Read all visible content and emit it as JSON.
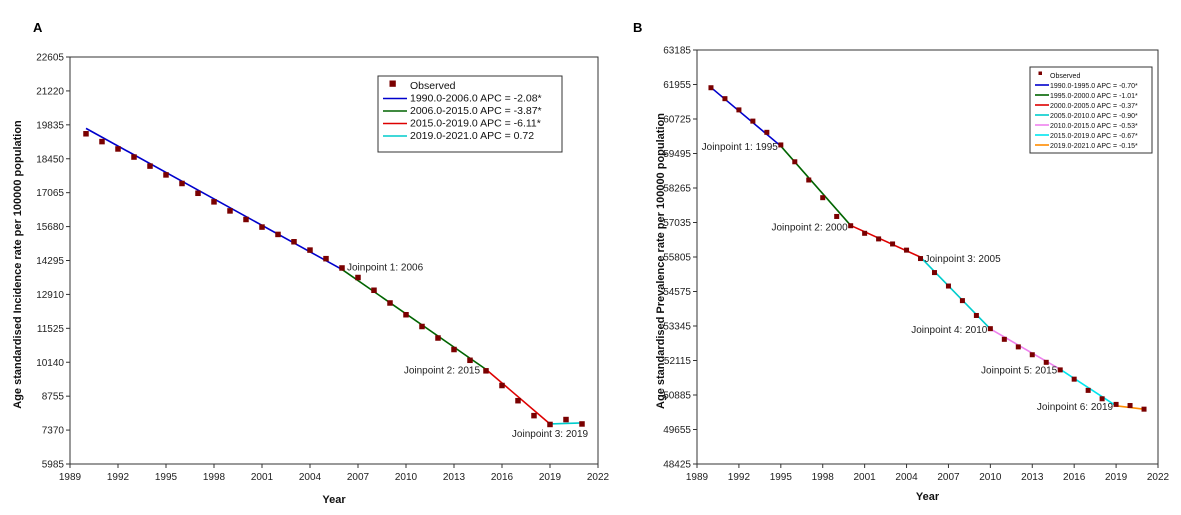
{
  "chart_data": [
    {
      "panel": "A",
      "type": "line",
      "xlabel": "Year",
      "ylabel": "Age standardised Incidence rate per 100000 population",
      "xlim": [
        1989,
        2022
      ],
      "ylim": [
        5985,
        22605
      ],
      "x_ticks": [
        "1989",
        "1992",
        "1995",
        "1998",
        "2001",
        "2004",
        "2007",
        "2010",
        "2013",
        "2016",
        "2019",
        "2022"
      ],
      "y_ticks": [
        "5985",
        "7370",
        "8755",
        "10140",
        "11525",
        "12910",
        "14295",
        "15680",
        "17065",
        "18450",
        "19835",
        "21220",
        "22605"
      ],
      "observed": {
        "name": "Observed",
        "color": "#7a0000",
        "x": [
          1990,
          1991,
          1992,
          1993,
          1994,
          1995,
          1996,
          1997,
          1998,
          1999,
          2000,
          2001,
          2002,
          2003,
          2004,
          2005,
          2006,
          2007,
          2008,
          2009,
          2010,
          2011,
          2012,
          2013,
          2014,
          2015,
          2016,
          2017,
          2018,
          2019,
          2020,
          2021
        ],
        "y": [
          19470,
          19150,
          18850,
          18520,
          18150,
          17790,
          17440,
          17040,
          16690,
          16320,
          15970,
          15660,
          15360,
          15060,
          14720,
          14370,
          13990,
          13600,
          13080,
          12560,
          12080,
          11600,
          11130,
          10660,
          10220,
          9790,
          9190,
          8570,
          7960,
          7600,
          7800,
          7620
        ]
      },
      "segments": [
        {
          "name": "1990.0-2006.0 APC  =  -2.08*",
          "color": "#0000cc",
          "x": [
            1990,
            2006
          ],
          "y": [
            19690,
            13930
          ]
        },
        {
          "name": "2006.0-2015.0 APC  =  -3.87*",
          "color": "#006400",
          "x": [
            2006,
            2015
          ],
          "y": [
            13930,
            9850
          ]
        },
        {
          "name": "2015.0-2019.0 APC  =  -6.11*",
          "color": "#dd0000",
          "x": [
            2015,
            2019
          ],
          "y": [
            9850,
            7620
          ]
        },
        {
          "name": "2019.0-2021.0 APC  =  0.72",
          "color": "#00cccc",
          "x": [
            2019,
            2021
          ],
          "y": [
            7620,
            7660
          ]
        }
      ],
      "joinpoints": [
        {
          "label": "Joinpoint 1:  2006",
          "x": 2006,
          "y": 13930,
          "anchor": "start"
        },
        {
          "label": "Joinpoint 2:  2015",
          "x": 2015,
          "y": 9850,
          "anchor": "end"
        },
        {
          "label": "Joinpoint 3:  2019",
          "x": 2019,
          "y": 7620,
          "anchor": "middle"
        }
      ],
      "legend_position": "top-right"
    },
    {
      "panel": "B",
      "type": "line",
      "xlabel": "Year",
      "ylabel": "Age standardised Prevalence rate per 100000 population",
      "xlim": [
        1989,
        2022
      ],
      "ylim": [
        48425,
        63185
      ],
      "x_ticks": [
        "1989",
        "1992",
        "1995",
        "1998",
        "2001",
        "2004",
        "2007",
        "2010",
        "2013",
        "2016",
        "2019",
        "2022"
      ],
      "y_ticks": [
        "48425",
        "49655",
        "50885",
        "52115",
        "53345",
        "54575",
        "55805",
        "57035",
        "58265",
        "59495",
        "60725",
        "61955",
        "63185"
      ],
      "observed": {
        "name": "Observed",
        "color": "#7a0000",
        "x": [
          1990,
          1991,
          1992,
          1993,
          1994,
          1995,
          1996,
          1997,
          1998,
          1999,
          2000,
          2001,
          2002,
          2003,
          2004,
          2005,
          2006,
          2007,
          2008,
          2009,
          2010,
          2011,
          2012,
          2013,
          2014,
          2015,
          2016,
          2017,
          2018,
          2019,
          2020,
          2021
        ],
        "y": [
          61840,
          61450,
          61050,
          60650,
          60250,
          59800,
          59200,
          58550,
          57920,
          57250,
          56920,
          56650,
          56450,
          56270,
          56050,
          55750,
          55250,
          54770,
          54250,
          53720,
          53250,
          52870,
          52600,
          52320,
          52050,
          51780,
          51450,
          51050,
          50750,
          50550,
          50510,
          50380
        ]
      },
      "segments": [
        {
          "name": "1990.0-1995.0 APC  =  -0.70*",
          "color": "#0000cc",
          "x": [
            1990,
            1995
          ],
          "y": [
            61850,
            59760
          ]
        },
        {
          "name": "1995.0-2000.0 APC  =  -1.01*",
          "color": "#006400",
          "x": [
            1995,
            2000
          ],
          "y": [
            59760,
            56930
          ]
        },
        {
          "name": "2000.0-2005.0 APC  =  -0.37*",
          "color": "#dd0000",
          "x": [
            2000,
            2005
          ],
          "y": [
            56930,
            55800
          ]
        },
        {
          "name": "2005.0-2010.0 APC  =  -0.90*",
          "color": "#00cccc",
          "x": [
            2005,
            2010
          ],
          "y": [
            55800,
            53240
          ]
        },
        {
          "name": "2010.0-2015.0 APC  =  -0.53*",
          "color": "#ee82ee",
          "x": [
            2010,
            2015
          ],
          "y": [
            53240,
            51800
          ]
        },
        {
          "name": "2015.0-2019.0 APC  =  -0.67*",
          "color": "#00e5ee",
          "x": [
            2015,
            2019
          ],
          "y": [
            51800,
            50500
          ]
        },
        {
          "name": "2019.0-2021.0 APC  =  -0.15*",
          "color": "#ff8c00",
          "x": [
            2019,
            2021
          ],
          "y": [
            50500,
            50380
          ]
        }
      ],
      "joinpoints": [
        {
          "label": "Joinpoint 1:  1995",
          "x": 1995,
          "y": 59760,
          "anchor": "end"
        },
        {
          "label": "Joinpoint 2:  2000",
          "x": 2000,
          "y": 56930,
          "anchor": "end"
        },
        {
          "label": "Joinpoint 3:  2005",
          "x": 2005,
          "y": 55800,
          "anchor": "start"
        },
        {
          "label": "Joinpoint 4:  2010",
          "x": 2010,
          "y": 53240,
          "anchor": "end"
        },
        {
          "label": "Joinpoint 5:  2015",
          "x": 2015,
          "y": 51800,
          "anchor": "end"
        },
        {
          "label": "Joinpoint 6:  2019",
          "x": 2019,
          "y": 50500,
          "anchor": "end"
        }
      ],
      "legend_position": "top-right"
    }
  ]
}
